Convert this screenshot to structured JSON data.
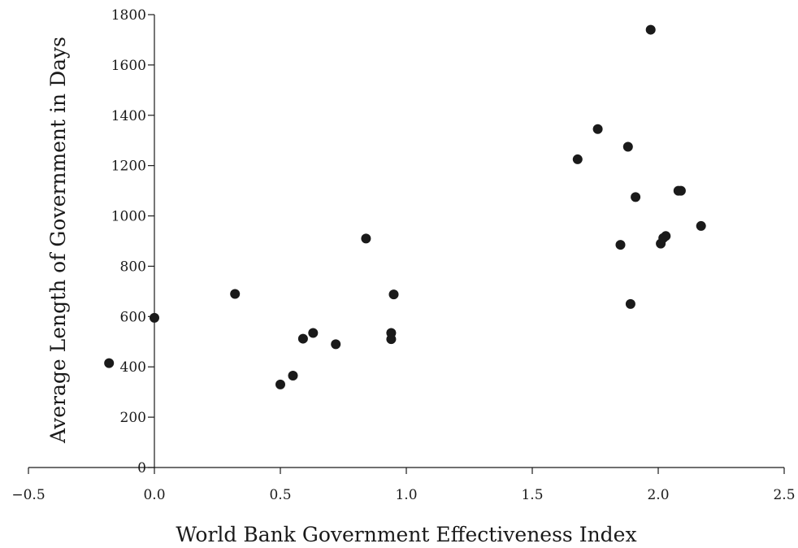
{
  "chart_data": {
    "type": "scatter",
    "title": "",
    "xlabel": "World Bank Government Effectiveness Index",
    "ylabel": "Average Length of Government in Days",
    "xlim": [
      -0.5,
      2.5
    ],
    "ylim": [
      0,
      1800
    ],
    "xticks": [
      -0.5,
      0.0,
      0.5,
      1.0,
      1.5,
      2.0,
      2.5
    ],
    "xtick_labels": [
      "−0.5",
      "0.0",
      "0.5",
      "1.0",
      "1.5",
      "2.0",
      "2.5"
    ],
    "yticks": [
      0,
      200,
      400,
      600,
      800,
      1000,
      1200,
      1400,
      1600,
      1800
    ],
    "ytick_labels": [
      "0",
      "200",
      "400",
      "600",
      "800",
      "1000",
      "1200",
      "1400",
      "1600",
      "1800"
    ],
    "grid": false,
    "legend": "none",
    "marker_color": "#1a1a1a",
    "points": [
      {
        "x": -0.18,
        "y": 415
      },
      {
        "x": 0.0,
        "y": 595
      },
      {
        "x": 0.32,
        "y": 690
      },
      {
        "x": 0.5,
        "y": 330
      },
      {
        "x": 0.55,
        "y": 365
      },
      {
        "x": 0.59,
        "y": 512
      },
      {
        "x": 0.63,
        "y": 535
      },
      {
        "x": 0.72,
        "y": 490
      },
      {
        "x": 0.84,
        "y": 910
      },
      {
        "x": 0.94,
        "y": 535
      },
      {
        "x": 0.94,
        "y": 510
      },
      {
        "x": 0.95,
        "y": 688
      },
      {
        "x": 1.68,
        "y": 1225
      },
      {
        "x": 1.76,
        "y": 1345
      },
      {
        "x": 1.85,
        "y": 885
      },
      {
        "x": 1.88,
        "y": 1275
      },
      {
        "x": 1.89,
        "y": 650
      },
      {
        "x": 1.91,
        "y": 1075
      },
      {
        "x": 1.97,
        "y": 1740
      },
      {
        "x": 2.01,
        "y": 890
      },
      {
        "x": 2.02,
        "y": 912
      },
      {
        "x": 2.03,
        "y": 920
      },
      {
        "x": 2.08,
        "y": 1100
      },
      {
        "x": 2.09,
        "y": 1100
      },
      {
        "x": 2.17,
        "y": 960
      }
    ]
  }
}
